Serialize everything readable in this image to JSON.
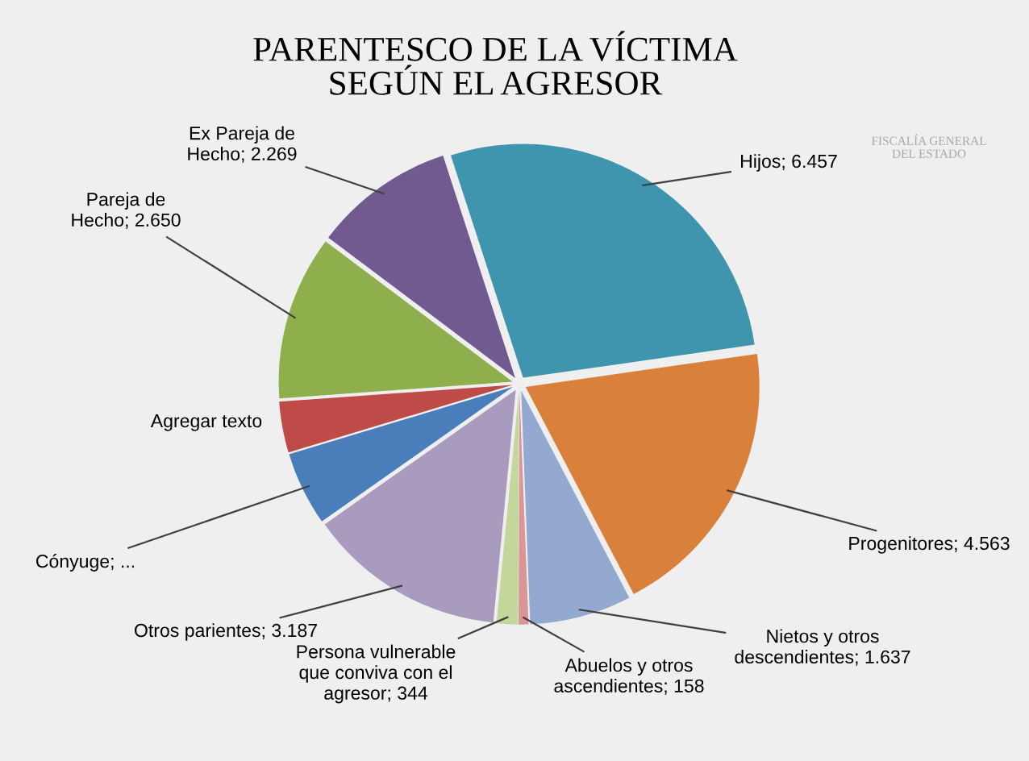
{
  "chart_data": {
    "type": "pie",
    "title": "PARENTESCO DE LA VÍCTIMA SEGÚN EL AGRESOR",
    "categories": [
      "Hijos",
      "Progenitores",
      "Nietos y otros descendientes",
      "Abuelos y otros ascendientes",
      "Persona vulnerable que conviva con el agresor",
      "Otros parientes",
      "Cónyuge",
      "Agregar texto",
      "Pareja de Hecho",
      "Ex Pareja de Hecho"
    ],
    "values": [
      6457,
      4563,
      1637,
      158,
      344,
      3187,
      1190,
      820,
      2650,
      2269
    ],
    "value_labels": [
      "6.457",
      "4.563",
      "1.637",
      "158",
      "344",
      "3.187",
      "...",
      null,
      "2.650",
      "2.269"
    ],
    "colors": [
      "#3f95ad",
      "#d9803a",
      "#93a9cf",
      "#d99694",
      "#c3d69b",
      "#a99bbd",
      "#4a7ebb",
      "#be4b48",
      "#8fae4c",
      "#705a90"
    ],
    "annotations": [
      "FISCALÍA GENERAL DEL ESTADO"
    ]
  }
}
